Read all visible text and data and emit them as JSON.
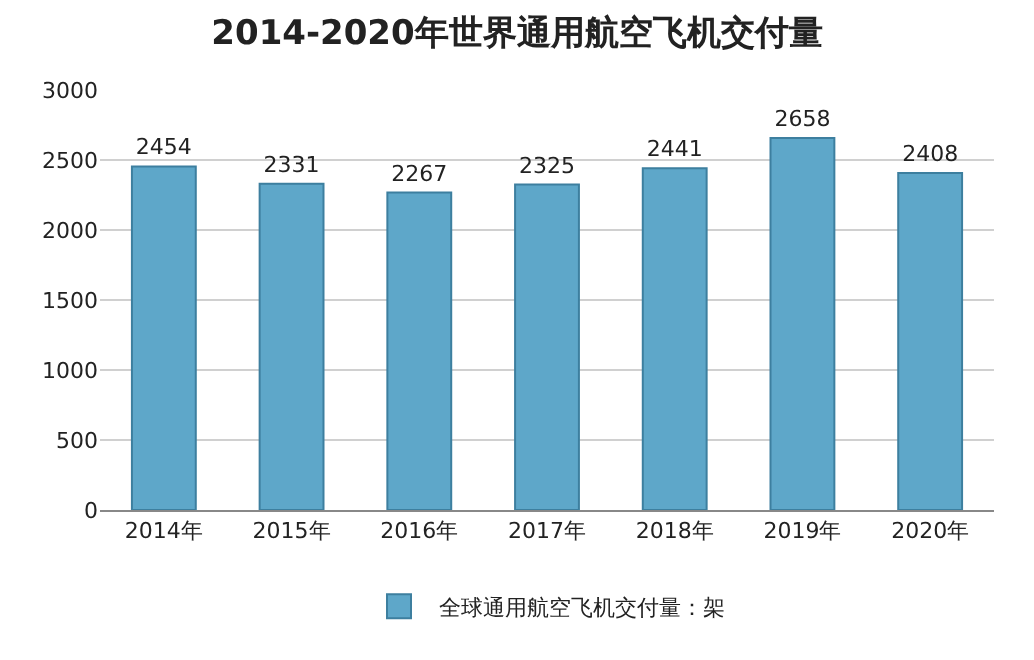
{
  "chart_data": {
    "type": "bar",
    "title": "2014-2020年世界通用航空飞机交付量",
    "categories": [
      "2014年",
      "2015年",
      "2016年",
      "2017年",
      "2018年",
      "2019年",
      "2020年"
    ],
    "series": [
      {
        "name": "全球通用航空飞机交付量：架",
        "color": "#5ea7c9",
        "values": [
          2454,
          2331,
          2267,
          2325,
          2441,
          2658,
          2408
        ]
      }
    ],
    "ylim": [
      0,
      3000
    ],
    "yticks": [
      0,
      500,
      1000,
      1500,
      2000,
      2500,
      3000
    ],
    "grid": "y",
    "legend": "bottom",
    "data_labels": true
  }
}
